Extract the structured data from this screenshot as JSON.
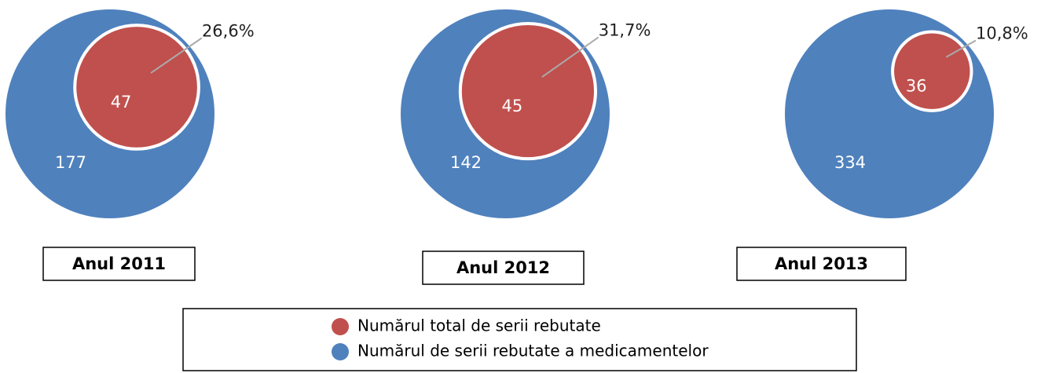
{
  "chart_data": {
    "type": "nested-circles",
    "categories": [
      "Anul 2011",
      "Anul 2012",
      "Anul 2013"
    ],
    "series": [
      {
        "name": "Numărul total de serii rebutate",
        "color": "#c0504d",
        "values": [
          47,
          45,
          36
        ]
      },
      {
        "name": "Numărul de serii rebutate a medicamentelor",
        "color": "#4f81bd",
        "values": [
          177,
          142,
          334
        ]
      }
    ],
    "shares": {
      "values": [
        26.6,
        31.7,
        10.8
      ],
      "value_labels": [
        "26,6%",
        "31,7%",
        "10,8%"
      ]
    }
  }
}
